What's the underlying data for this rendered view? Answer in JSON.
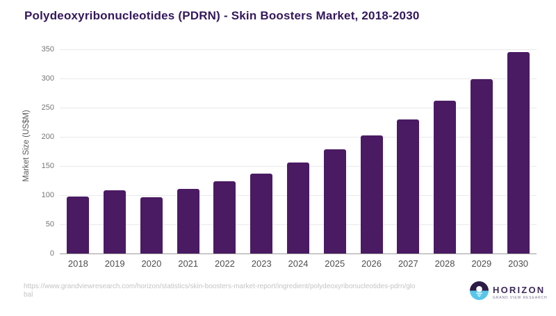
{
  "title": "Polydeoxyribonucleotides (PDRN) - Skin Boosters Market, 2018-2030",
  "chart_data": {
    "type": "bar",
    "title": "Polydeoxyribonucleotides (PDRN) - Skin Boosters Market, 2018-2030",
    "categories": [
      "2018",
      "2019",
      "2020",
      "2021",
      "2022",
      "2023",
      "2024",
      "2025",
      "2026",
      "2027",
      "2028",
      "2029",
      "2030"
    ],
    "values": [
      98,
      108,
      97,
      111,
      124,
      137,
      156,
      178,
      202,
      230,
      262,
      299,
      345
    ],
    "xlabel": "",
    "ylabel": "Market Size (US$M)",
    "ylim": [
      0,
      350
    ],
    "ytick_interval": 50,
    "bar_color": "#4a1a63",
    "grid": "horizontal",
    "legend": "none"
  },
  "footer": {
    "source_lines": [
      "https://www.grandviewresearch.com/horizon/statistics/skin-boosters-market-report/ingredient/polydeoxyribonucleotides-pdrn/glo",
      "bal"
    ],
    "logo": {
      "name": "HORIZON",
      "subtitle": "GRAND VIEW RESEARCH",
      "icon": "horizon-sun-icon",
      "icon_dark_color": "#2d1c45",
      "icon_blue_color": "#58c6ea"
    }
  },
  "colors": {
    "title_text": "#33175c",
    "bar": "#4a1a63",
    "gridline": "#e9e9e9",
    "axis_line": "#9a9a9a",
    "y_tick_text": "#757575",
    "x_tick_text": "#4d4d4d",
    "source_text": "#c4c4c4"
  }
}
